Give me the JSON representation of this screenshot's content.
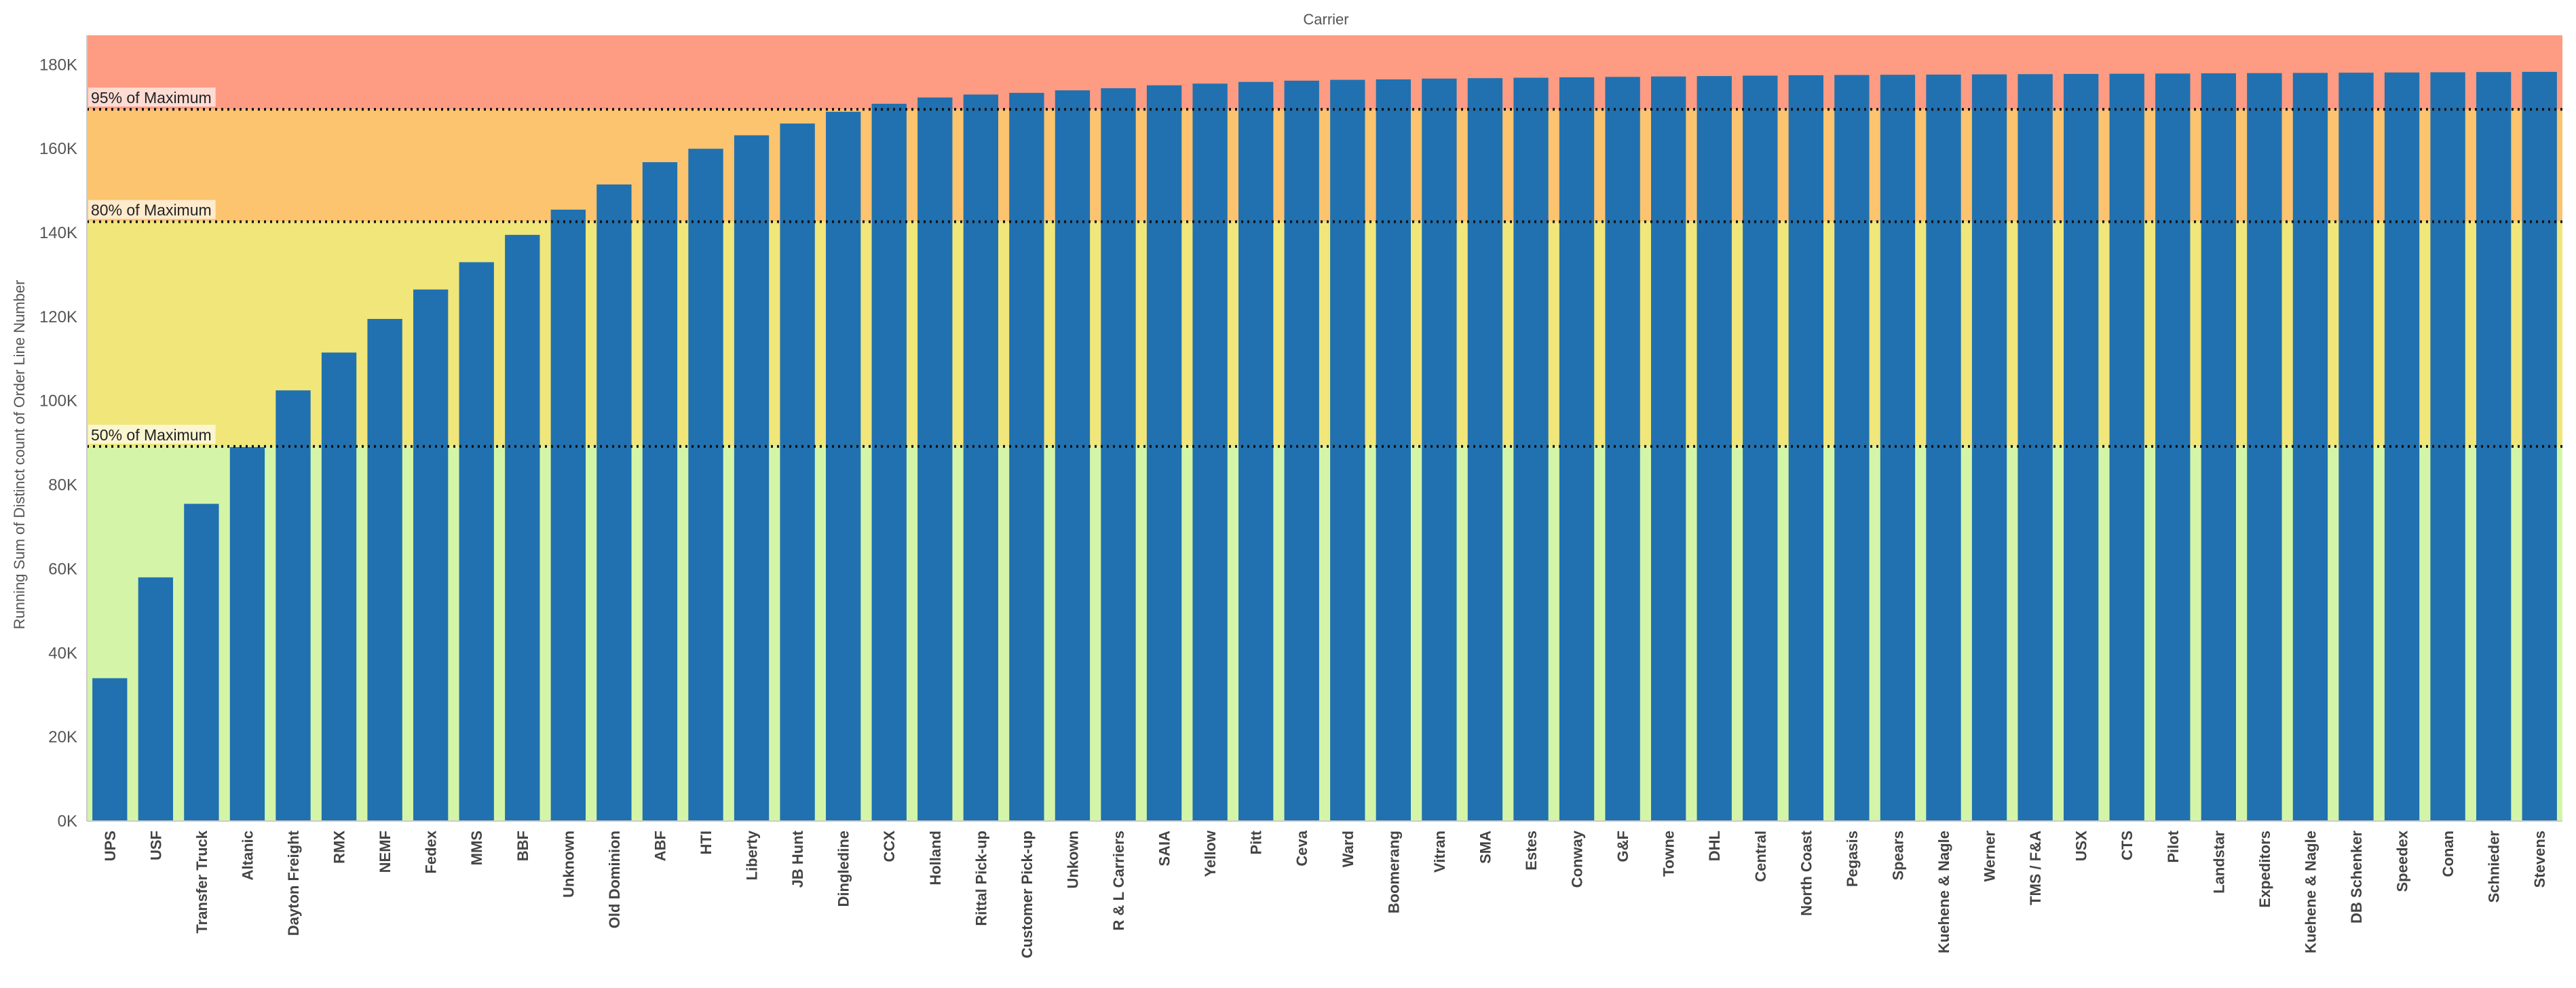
{
  "chart_data": {
    "type": "bar",
    "title": "Carrier",
    "ylabel": "Running Sum of Distinct count of Order Line Number",
    "xlabel": "",
    "ylim": [
      0,
      187000
    ],
    "yticks": [
      0,
      20000,
      40000,
      60000,
      80000,
      100000,
      120000,
      140000,
      160000,
      180000
    ],
    "ytick_labels": [
      "0K",
      "20K",
      "40K",
      "60K",
      "80K",
      "100K",
      "120K",
      "140K",
      "160K",
      "180K"
    ],
    "categories": [
      "UPS",
      "USF",
      "Transfer Truck",
      "Altanic",
      "Dayton Freight",
      "RMX",
      "NEMF",
      "Fedex",
      "MMS",
      "BBF",
      "Unknown",
      "Old Dominion",
      "ABF",
      "HTI",
      "Liberty",
      "JB Hunt",
      "Dingledine",
      "CCX",
      "Holland",
      "Rittal Pick-up",
      "Customer Pick-up",
      "Unkown",
      "R & L Carriers",
      "SAIA",
      "Yellow",
      "Pitt",
      "Ceva",
      "Ward",
      "Boomerang",
      "Vitran",
      "SMA",
      "Estes",
      "Conway",
      "G&F",
      "Towne",
      "DHL",
      "Central",
      "North Coast",
      "Pegasis",
      "Spears",
      "Kuehene & Nagle",
      "Werner",
      "TMS / F&A",
      "USX",
      "CTS",
      "Pilot",
      "Landstar",
      "Expeditors",
      "Kuehene & Nagle",
      "DB Schenker",
      "Speedex",
      "Conan",
      "Schnieder",
      "Stevens"
    ],
    "values": [
      34000,
      58000,
      75500,
      89000,
      102500,
      111500,
      119500,
      126500,
      133000,
      139500,
      145500,
      151500,
      156800,
      160000,
      163200,
      166000,
      168800,
      170700,
      172200,
      172900,
      173300,
      173900,
      174400,
      175100,
      175500,
      175900,
      176200,
      176400,
      176500,
      176700,
      176800,
      176900,
      177000,
      177100,
      177200,
      177300,
      177400,
      177500,
      177550,
      177600,
      177650,
      177700,
      177750,
      177800,
      177850,
      177900,
      177950,
      178000,
      178050,
      178100,
      178150,
      178200,
      178250,
      178300
    ],
    "maximum": 178300,
    "reference_lines": [
      {
        "label": "50% of Maximum",
        "fraction": 0.5
      },
      {
        "label": "80% of Maximum",
        "fraction": 0.8
      },
      {
        "label": "95% of Maximum",
        "fraction": 0.95
      }
    ],
    "bands": [
      {
        "from_fraction": 0,
        "to_fraction": 0.5,
        "color": "#d4f5a8"
      },
      {
        "from_fraction": 0.5,
        "to_fraction": 0.8,
        "color": "#f0e67a"
      },
      {
        "from_fraction": 0.8,
        "to_fraction": 0.95,
        "color": "#fcc46e"
      },
      {
        "from_fraction": 0.95,
        "to_fraction": 1.05,
        "color": "#fd9c82"
      }
    ],
    "bar_color": "#2171b0",
    "grid": false,
    "legend": "none"
  }
}
